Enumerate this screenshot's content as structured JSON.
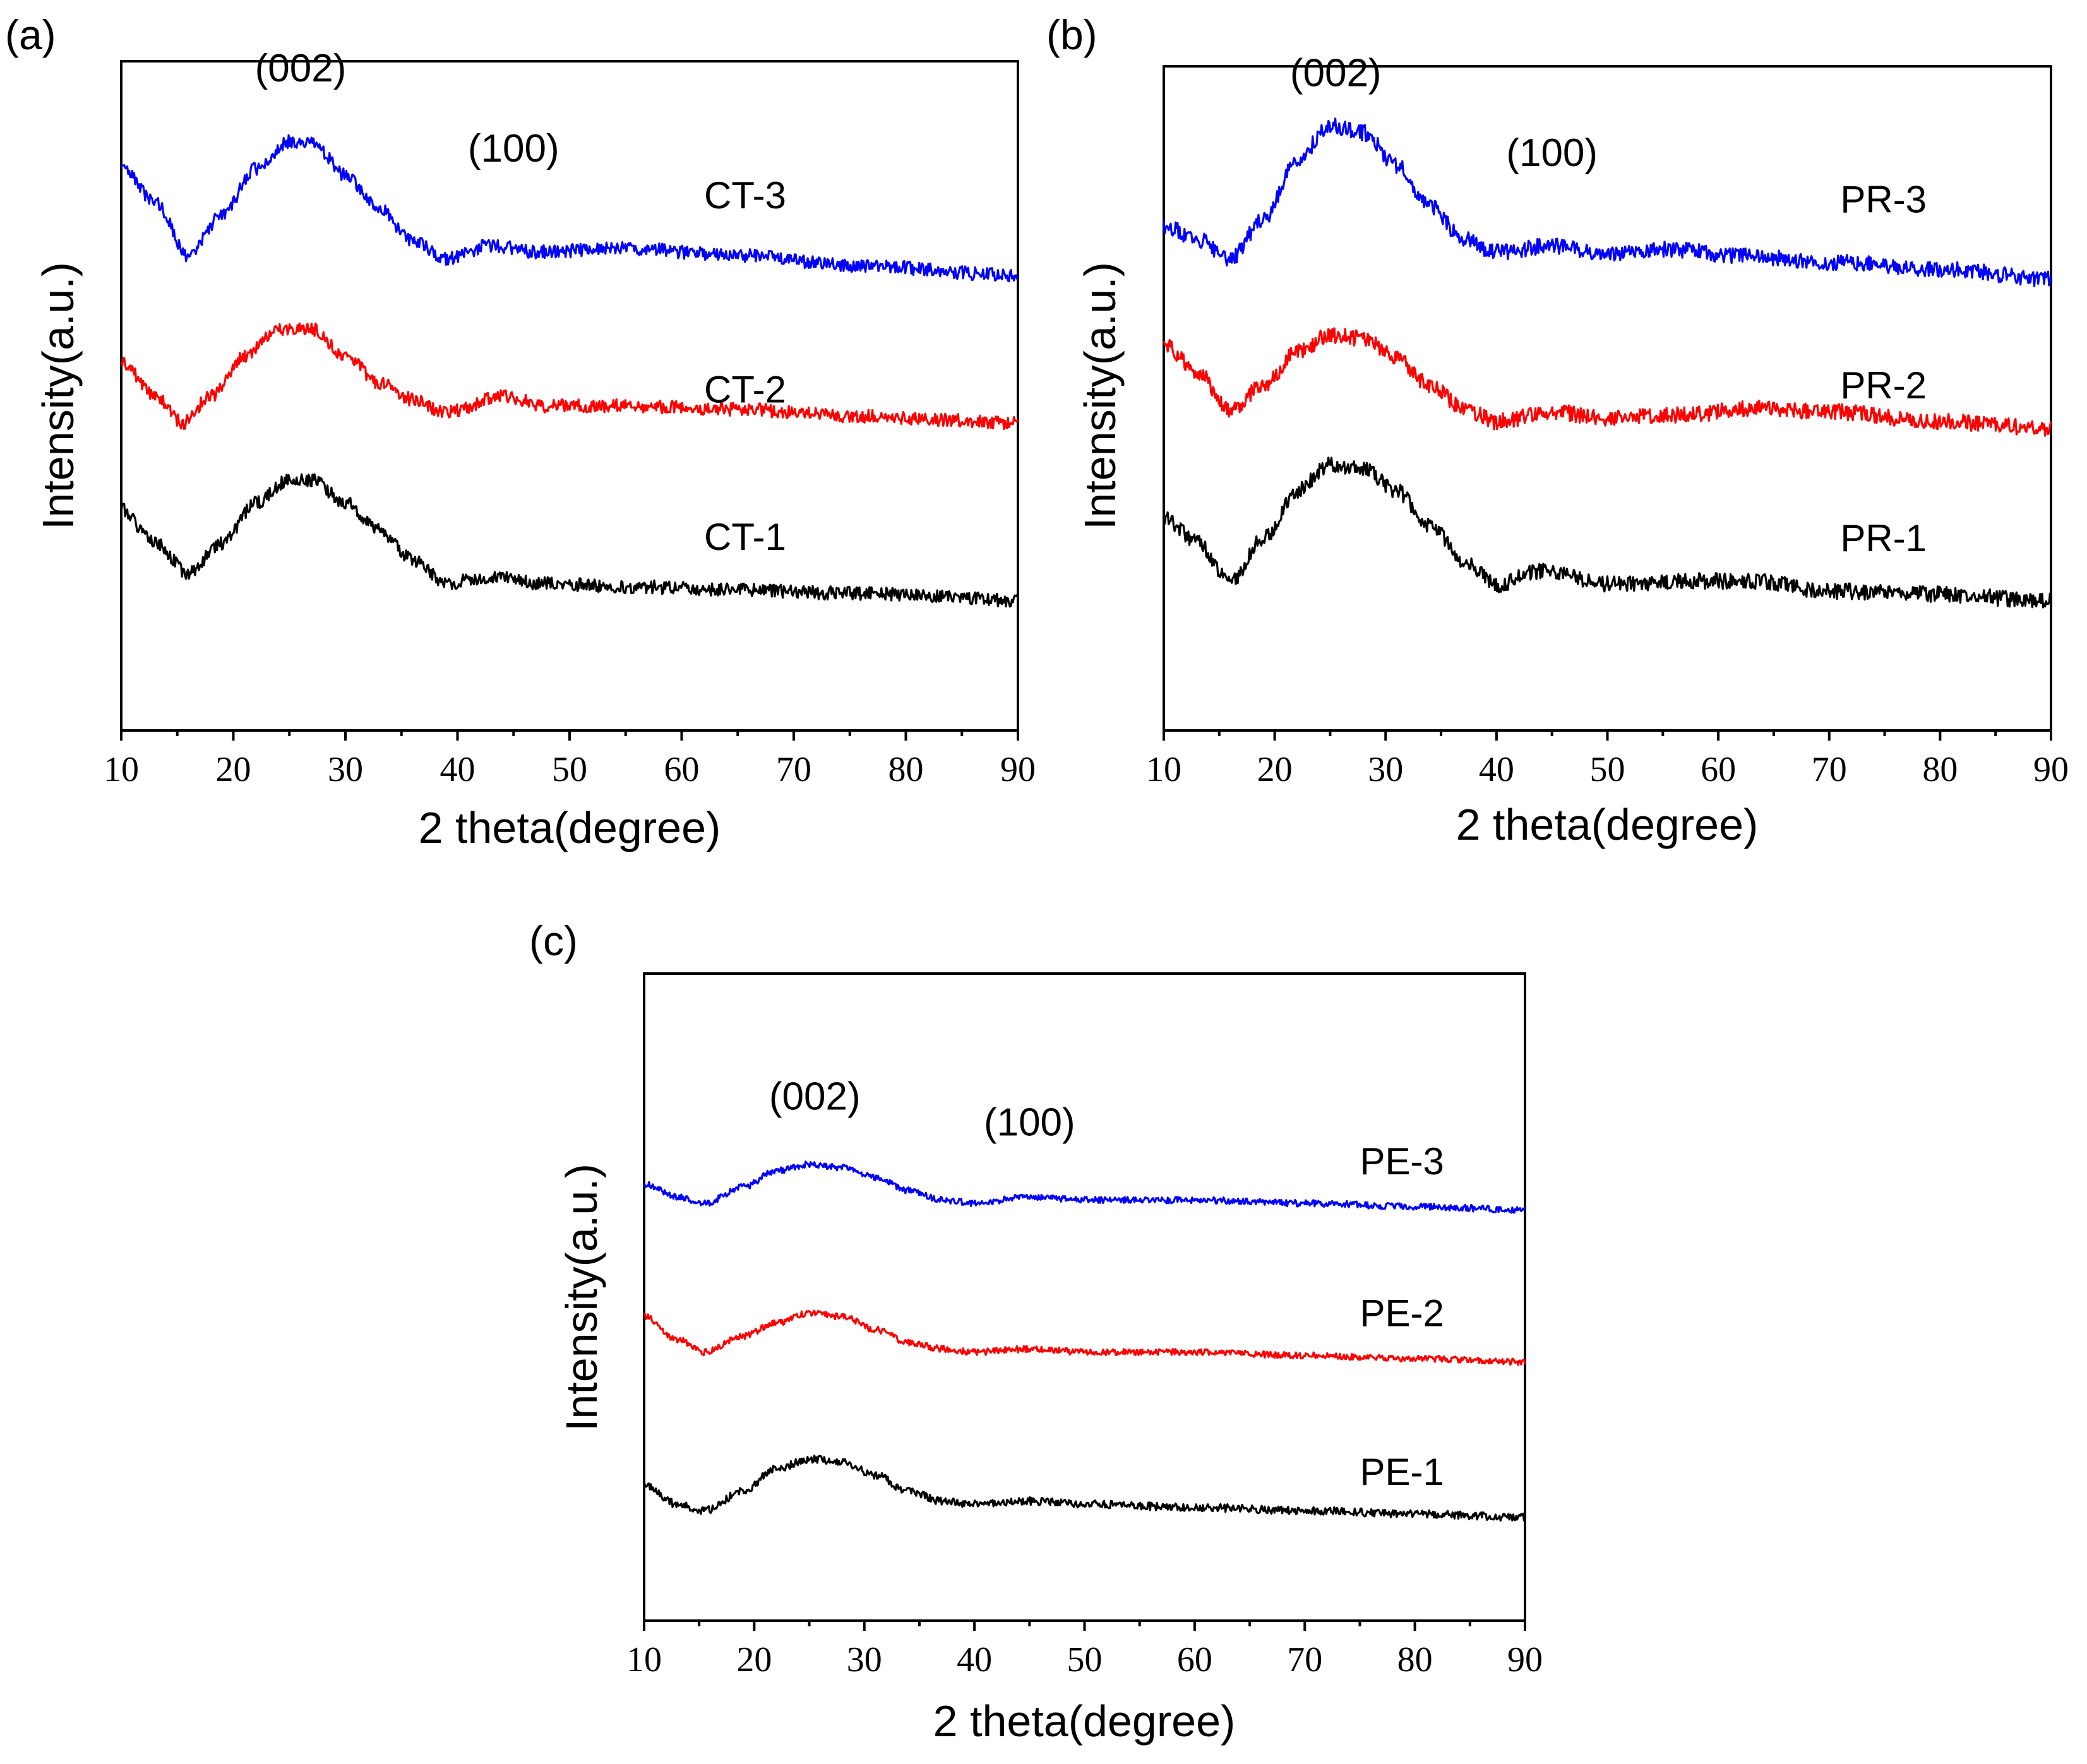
{
  "chart_data": [
    {
      "panel": "(a)",
      "type": "line",
      "xlabel": "2 theta(degree)",
      "ylabel": "Intensity(a.u.)",
      "xlim": [
        10,
        90
      ],
      "xticks": [
        10,
        20,
        30,
        40,
        50,
        60,
        70,
        80,
        90
      ],
      "yticks_shown": false,
      "ylim": [
        0,
        10
      ],
      "annotations": [
        {
          "text": "(002)",
          "x": 26,
          "y": 9.7
        },
        {
          "text": "(100)",
          "x": 45,
          "y": 8.5
        }
      ],
      "series": [
        {
          "name": "CT-3",
          "color": "#0000ff",
          "label_pos": [
            62,
            7.8
          ],
          "noise": 0.1,
          "seed": 3,
          "points": [
            [
              10,
              8.4
            ],
            [
              13,
              7.9
            ],
            [
              16,
              7.1
            ],
            [
              19,
              7.7
            ],
            [
              22,
              8.4
            ],
            [
              25,
              8.8
            ],
            [
              27,
              8.8
            ],
            [
              30,
              8.3
            ],
            [
              33,
              7.8
            ],
            [
              36,
              7.3
            ],
            [
              39,
              7.05
            ],
            [
              43,
              7.25
            ],
            [
              47,
              7.15
            ],
            [
              55,
              7.2
            ],
            [
              65,
              7.1
            ],
            [
              75,
              6.95
            ],
            [
              90,
              6.8
            ]
          ]
        },
        {
          "name": "CT-2",
          "color": "#ff0000",
          "label_pos": [
            62,
            4.9
          ],
          "noise": 0.1,
          "seed": 2,
          "points": [
            [
              10,
              5.5
            ],
            [
              13,
              5.0
            ],
            [
              15.5,
              4.6
            ],
            [
              18,
              5.0
            ],
            [
              21,
              5.6
            ],
            [
              24,
              6.0
            ],
            [
              27,
              6.0
            ],
            [
              30,
              5.6
            ],
            [
              33,
              5.2
            ],
            [
              36,
              4.95
            ],
            [
              39,
              4.75
            ],
            [
              44,
              5.0
            ],
            [
              48,
              4.85
            ],
            [
              55,
              4.85
            ],
            [
              65,
              4.8
            ],
            [
              75,
              4.7
            ],
            [
              90,
              4.6
            ]
          ]
        },
        {
          "name": "CT-1",
          "color": "#000000",
          "label_pos": [
            62,
            2.7
          ],
          "noise": 0.1,
          "seed": 1,
          "points": [
            [
              10,
              3.3
            ],
            [
              13,
              2.8
            ],
            [
              16,
              2.35
            ],
            [
              19,
              2.8
            ],
            [
              22,
              3.4
            ],
            [
              25,
              3.75
            ],
            [
              27,
              3.75
            ],
            [
              30,
              3.4
            ],
            [
              33,
              3.0
            ],
            [
              36,
              2.55
            ],
            [
              39,
              2.2
            ],
            [
              43,
              2.3
            ],
            [
              47,
              2.2
            ],
            [
              55,
              2.15
            ],
            [
              65,
              2.1
            ],
            [
              75,
              2.05
            ],
            [
              90,
              1.95
            ]
          ]
        }
      ]
    },
    {
      "panel": "(b)",
      "type": "line",
      "xlabel": "2 theta(degree)",
      "ylabel": "Intensity(a.u.)",
      "xlim": [
        10,
        90
      ],
      "xticks": [
        10,
        20,
        30,
        40,
        50,
        60,
        70,
        80,
        90
      ],
      "yticks_shown": false,
      "ylim": [
        0,
        10
      ],
      "annotations": [
        {
          "text": "(002)",
          "x": 25.5,
          "y": 9.7
        },
        {
          "text": "(100)",
          "x": 45,
          "y": 8.5
        }
      ],
      "series": [
        {
          "name": "PR-3",
          "color": "#0000ff",
          "label_pos": [
            71,
            7.8
          ],
          "noise": 0.12,
          "seed": 6,
          "points": [
            [
              10,
              7.6
            ],
            [
              13,
              7.4
            ],
            [
              16,
              7.1
            ],
            [
              19,
              7.7
            ],
            [
              22,
              8.6
            ],
            [
              25,
              9.1
            ],
            [
              28,
              9.0
            ],
            [
              31,
              8.5
            ],
            [
              34,
              7.9
            ],
            [
              37,
              7.4
            ],
            [
              40,
              7.2
            ],
            [
              45,
              7.3
            ],
            [
              50,
              7.15
            ],
            [
              55,
              7.25
            ],
            [
              62,
              7.15
            ],
            [
              70,
              7.05
            ],
            [
              80,
              6.95
            ],
            [
              90,
              6.8
            ]
          ]
        },
        {
          "name": "PR-2",
          "color": "#ff0000",
          "label_pos": [
            71,
            5.0
          ],
          "noise": 0.12,
          "seed": 5,
          "points": [
            [
              10,
              5.8
            ],
            [
              13,
              5.4
            ],
            [
              16,
              4.8
            ],
            [
              19,
              5.2
            ],
            [
              22,
              5.7
            ],
            [
              25,
              5.95
            ],
            [
              28,
              5.9
            ],
            [
              31,
              5.6
            ],
            [
              34,
              5.2
            ],
            [
              37,
              4.85
            ],
            [
              40,
              4.65
            ],
            [
              45,
              4.8
            ],
            [
              50,
              4.7
            ],
            [
              57,
              4.75
            ],
            [
              63,
              4.85
            ],
            [
              70,
              4.8
            ],
            [
              80,
              4.65
            ],
            [
              90,
              4.55
            ]
          ]
        },
        {
          "name": "PR-1",
          "color": "#000000",
          "label_pos": [
            71,
            2.7
          ],
          "noise": 0.12,
          "seed": 4,
          "points": [
            [
              10,
              3.2
            ],
            [
              13,
              2.85
            ],
            [
              16,
              2.25
            ],
            [
              19,
              2.9
            ],
            [
              22,
              3.6
            ],
            [
              25,
              4.0
            ],
            [
              28,
              3.95
            ],
            [
              31,
              3.6
            ],
            [
              34,
              3.1
            ],
            [
              37,
              2.55
            ],
            [
              40,
              2.2
            ],
            [
              44,
              2.4
            ],
            [
              50,
              2.2
            ],
            [
              57,
              2.25
            ],
            [
              63,
              2.25
            ],
            [
              70,
              2.1
            ],
            [
              80,
              2.05
            ],
            [
              90,
              1.95
            ]
          ]
        }
      ]
    },
    {
      "panel": "(c)",
      "type": "line",
      "xlabel": "2 theta(degree)",
      "ylabel": "Intensity(a.u.)",
      "xlim": [
        10,
        90
      ],
      "xticks": [
        10,
        20,
        30,
        40,
        50,
        60,
        70,
        80,
        90
      ],
      "yticks_shown": false,
      "ylim": [
        0,
        10
      ],
      "annotations": [
        {
          "text": "(002)",
          "x": 25.5,
          "y": 7.9
        },
        {
          "text": "(100)",
          "x": 45,
          "y": 7.5
        }
      ],
      "series": [
        {
          "name": "PE-3",
          "color": "#0000ff",
          "label_pos": [
            75,
            6.9
          ],
          "noise": 0.05,
          "seed": 9,
          "points": [
            [
              10,
              6.75
            ],
            [
              13,
              6.55
            ],
            [
              15.5,
              6.45
            ],
            [
              19,
              6.7
            ],
            [
              22,
              6.95
            ],
            [
              25,
              7.05
            ],
            [
              28,
              7.0
            ],
            [
              31,
              6.85
            ],
            [
              34,
              6.65
            ],
            [
              37,
              6.5
            ],
            [
              40,
              6.45
            ],
            [
              45,
              6.55
            ],
            [
              50,
              6.5
            ],
            [
              60,
              6.5
            ],
            [
              70,
              6.45
            ],
            [
              80,
              6.4
            ],
            [
              90,
              6.35
            ]
          ]
        },
        {
          "name": "PE-2",
          "color": "#ff0000",
          "label_pos": [
            75,
            4.55
          ],
          "noise": 0.05,
          "seed": 8,
          "points": [
            [
              10,
              4.7
            ],
            [
              13,
              4.35
            ],
            [
              15.5,
              4.15
            ],
            [
              19,
              4.4
            ],
            [
              22,
              4.6
            ],
            [
              25,
              4.75
            ],
            [
              28,
              4.7
            ],
            [
              31,
              4.5
            ],
            [
              34,
              4.3
            ],
            [
              37,
              4.2
            ],
            [
              40,
              4.15
            ],
            [
              45,
              4.2
            ],
            [
              50,
              4.15
            ],
            [
              60,
              4.15
            ],
            [
              70,
              4.1
            ],
            [
              80,
              4.05
            ],
            [
              90,
              4.0
            ]
          ]
        },
        {
          "name": "PE-1",
          "color": "#000000",
          "label_pos": [
            75,
            2.1
          ],
          "noise": 0.06,
          "seed": 7,
          "points": [
            [
              10,
              2.1
            ],
            [
              13,
              1.8
            ],
            [
              15.5,
              1.7
            ],
            [
              19,
              2.0
            ],
            [
              22,
              2.35
            ],
            [
              25,
              2.5
            ],
            [
              28,
              2.45
            ],
            [
              31,
              2.25
            ],
            [
              34,
              2.0
            ],
            [
              37,
              1.85
            ],
            [
              40,
              1.8
            ],
            [
              45,
              1.85
            ],
            [
              50,
              1.8
            ],
            [
              60,
              1.75
            ],
            [
              70,
              1.7
            ],
            [
              80,
              1.65
            ],
            [
              90,
              1.6
            ]
          ]
        }
      ]
    }
  ]
}
